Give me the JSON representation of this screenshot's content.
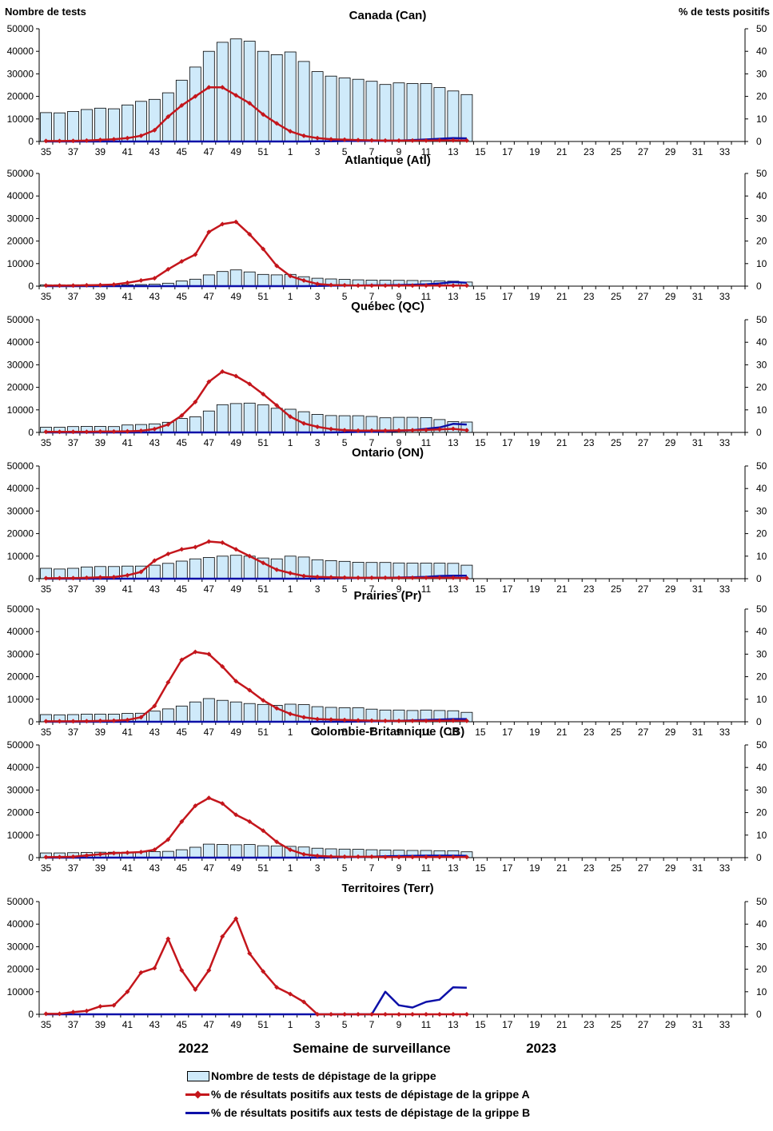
{
  "colors": {
    "bar_fill": "#cfeafa",
    "bar_stroke": "#000000",
    "flu_a": "#c4161c",
    "flu_b": "#0d10a8"
  },
  "axis_titles": {
    "left": "Nombre de tests",
    "right": "% de tests positifs",
    "x": "Semaine de surveillance",
    "year_left": "2022",
    "year_right": "2023"
  },
  "legend": {
    "bars": "Nombre de tests de dépistage de la grippe",
    "flu_a": "% de résultats positifs aux tests de dépistage de la grippe A",
    "flu_b": "% de résultats positifs aux tests de dépistage de la grippe B"
  },
  "chart_data": {
    "type": "bar",
    "weeks": [
      35,
      36,
      37,
      38,
      39,
      40,
      41,
      42,
      43,
      44,
      45,
      46,
      47,
      48,
      49,
      50,
      51,
      52,
      1,
      2,
      3,
      4,
      5,
      6,
      7,
      8,
      9,
      10,
      11,
      12,
      13,
      14,
      15,
      16,
      17,
      18,
      19,
      20,
      21,
      22,
      23,
      24,
      25,
      26,
      27,
      28,
      29,
      30,
      31,
      32,
      33,
      34
    ],
    "x_tick_labels": [
      "35",
      "37",
      "39",
      "41",
      "43",
      "45",
      "47",
      "49",
      "51",
      "1",
      "3",
      "5",
      "7",
      "9",
      "11",
      "13",
      "15",
      "17",
      "19",
      "21",
      "23",
      "25",
      "27",
      "29",
      "31",
      "33"
    ],
    "y_left_ticks": [
      "0",
      "10000",
      "20000",
      "30000",
      "40000",
      "50000"
    ],
    "y_right_ticks": [
      "0",
      "10",
      "20",
      "30",
      "40",
      "50"
    ],
    "ylim_left": [
      0,
      50000
    ],
    "ylim_right": [
      0,
      50
    ],
    "panels": [
      {
        "title": "Canada (Can)",
        "tests": [
          12800,
          12700,
          13300,
          14200,
          14800,
          14500,
          16200,
          17800,
          18700,
          21600,
          27200,
          33000,
          40000,
          44000,
          45500,
          44500,
          40000,
          38500,
          39700,
          35500,
          31000,
          29000,
          28200,
          27600,
          26700,
          25300,
          26000,
          25700,
          25700,
          23900,
          22400,
          20800
        ],
        "flu_a": [
          0.2,
          0.2,
          0.3,
          0.4,
          0.7,
          1.0,
          1.5,
          2.5,
          5.0,
          11.0,
          16.0,
          20.0,
          24.0,
          24.0,
          20.5,
          17.0,
          12.0,
          8.0,
          4.5,
          2.5,
          1.5,
          1.0,
          0.8,
          0.6,
          0.5,
          0.4,
          0.4,
          0.4,
          0.4,
          0.5,
          0.5,
          0.4
        ],
        "flu_b": [
          0,
          0,
          0,
          0,
          0,
          0,
          0,
          0,
          0,
          0,
          0,
          0,
          0,
          0,
          0,
          0,
          0,
          0,
          0,
          0,
          0.1,
          0.1,
          0.2,
          0.2,
          0.3,
          0.3,
          0.4,
          0.6,
          0.9,
          1.2,
          1.5,
          1.4
        ]
      },
      {
        "title": "Atlantique (Atl)",
        "tests": [
          600,
          600,
          600,
          600,
          500,
          600,
          600,
          700,
          900,
          1300,
          2300,
          3100,
          5000,
          6500,
          7200,
          6300,
          5200,
          5000,
          5200,
          4200,
          3500,
          3200,
          3000,
          2800,
          2700,
          2700,
          2600,
          2500,
          2400,
          2300,
          2200,
          1800
        ],
        "flu_a": [
          0.3,
          0.3,
          0.3,
          0.4,
          0.5,
          0.7,
          1.5,
          2.5,
          3.5,
          7.5,
          11.0,
          14.0,
          24.0,
          27.5,
          28.5,
          23.0,
          16.5,
          9.0,
          4.5,
          2.5,
          1.0,
          0.5,
          0.4,
          0.3,
          0.3,
          0.3,
          0.3,
          0.3,
          0.3,
          0.3,
          0.3,
          0.3
        ],
        "flu_b": [
          0,
          0,
          0,
          0,
          0,
          0,
          0,
          0,
          0,
          0,
          0,
          0,
          0,
          0,
          0,
          0,
          0,
          0,
          0,
          0,
          0.1,
          0.2,
          0.3,
          0.3,
          0.4,
          0.4,
          0.5,
          0.6,
          0.8,
          1.2,
          1.8,
          1.5
        ]
      },
      {
        "title": "Québec (QC)",
        "tests": [
          2300,
          2300,
          2600,
          2700,
          2700,
          2600,
          3300,
          3500,
          3800,
          4500,
          6200,
          6900,
          9500,
          12300,
          12800,
          13000,
          12200,
          10700,
          10300,
          9200,
          8000,
          7500,
          7400,
          7400,
          7100,
          6500,
          6700,
          6700,
          6600,
          5700,
          4800,
          4600
        ],
        "flu_a": [
          0.3,
          0.3,
          0.3,
          0.3,
          0.4,
          0.4,
          0.5,
          0.7,
          1.5,
          3.5,
          7.5,
          13.5,
          22.5,
          27.0,
          25.0,
          21.5,
          17.0,
          12.0,
          7.0,
          4.0,
          2.5,
          1.5,
          1.0,
          0.8,
          0.8,
          0.8,
          0.9,
          1.0,
          1.1,
          1.3,
          1.6,
          1.0
        ],
        "flu_b": [
          0,
          0,
          0,
          0,
          0,
          0,
          0,
          0,
          0,
          0,
          0,
          0,
          0,
          0,
          0,
          0,
          0,
          0,
          0,
          0,
          0,
          0,
          0.1,
          0.2,
          0.3,
          0.4,
          0.7,
          1.0,
          1.6,
          2.2,
          3.8,
          3.5
        ]
      },
      {
        "title": "Ontario (ON)",
        "tests": [
          4600,
          4300,
          4600,
          5200,
          5400,
          5400,
          5600,
          5600,
          6000,
          6800,
          7800,
          8800,
          9400,
          10000,
          10400,
          10000,
          9200,
          8800,
          10000,
          9600,
          8400,
          8000,
          7700,
          7300,
          7200,
          7200,
          7000,
          6900,
          6900,
          6900,
          6800,
          6000
        ],
        "flu_a": [
          0.2,
          0.2,
          0.3,
          0.4,
          0.6,
          0.7,
          1.5,
          3.0,
          8.0,
          11.0,
          13.0,
          14.0,
          16.5,
          16.0,
          13.0,
          10.0,
          7.0,
          4.0,
          2.5,
          1.2,
          0.8,
          0.6,
          0.5,
          0.4,
          0.4,
          0.4,
          0.4,
          0.4,
          0.4,
          0.4,
          0.4,
          0.3
        ],
        "flu_b": [
          0,
          0,
          0,
          0,
          0,
          0,
          0,
          0,
          0,
          0,
          0,
          0,
          0,
          0,
          0,
          0,
          0,
          0,
          0,
          0,
          0,
          0.1,
          0.2,
          0.3,
          0.4,
          0.4,
          0.5,
          0.6,
          0.8,
          1.2,
          1.3,
          1.3
        ]
      },
      {
        "title": "Prairies (Pr)",
        "tests": [
          3200,
          3100,
          3200,
          3400,
          3400,
          3400,
          3700,
          3800,
          4700,
          5700,
          7000,
          8800,
          10300,
          9500,
          8800,
          8100,
          7700,
          7300,
          7800,
          7600,
          6700,
          6400,
          6200,
          6200,
          5600,
          5200,
          5200,
          5000,
          5200,
          5000,
          4900,
          4200
        ],
        "flu_a": [
          0.2,
          0.2,
          0.2,
          0.3,
          0.4,
          0.5,
          0.8,
          2.0,
          7.0,
          17.5,
          27.5,
          31.0,
          30.0,
          24.5,
          18.0,
          14.0,
          9.5,
          6.0,
          3.5,
          2.0,
          1.2,
          1.0,
          0.8,
          0.6,
          0.5,
          0.4,
          0.4,
          0.4,
          0.4,
          0.5,
          0.5,
          0.4
        ],
        "flu_b": [
          0,
          0,
          0,
          0,
          0,
          0,
          0,
          0,
          0,
          0,
          0,
          0,
          0,
          0,
          0,
          0,
          0,
          0,
          0,
          0,
          0,
          0,
          0,
          0.1,
          0.2,
          0.3,
          0.4,
          0.6,
          0.8,
          1.0,
          1.2,
          1.2
        ]
      },
      {
        "title": "Colombie-Britannique (CB)",
        "tests": [
          2100,
          2100,
          2200,
          2300,
          2400,
          2400,
          2400,
          2500,
          2700,
          2800,
          3500,
          4600,
          6000,
          5800,
          5700,
          5800,
          5300,
          5200,
          5000,
          4700,
          4200,
          3900,
          3800,
          3700,
          3500,
          3400,
          3300,
          3200,
          3200,
          3100,
          3100,
          2600
        ],
        "flu_a": [
          0.2,
          0.3,
          0.4,
          1.0,
          1.5,
          2.0,
          2.2,
          2.5,
          3.5,
          8.0,
          16.0,
          23.0,
          26.5,
          24.0,
          19.0,
          16.0,
          12.0,
          7.0,
          3.5,
          1.5,
          0.8,
          0.5,
          0.4,
          0.4,
          0.4,
          0.3,
          0.3,
          0.3,
          0.3,
          0.3,
          0.3,
          0.3
        ],
        "flu_b": [
          0,
          0,
          0,
          0,
          0,
          0,
          0,
          0,
          0,
          0,
          0,
          0,
          0,
          0,
          0,
          0,
          0,
          0,
          0,
          0,
          0,
          0.1,
          0.2,
          0.3,
          0.4,
          0.6,
          0.7,
          0.8,
          0.9,
          0.9,
          0.9,
          0.8
        ]
      },
      {
        "title": "Territoires (Terr)",
        "tests": [
          0,
          0,
          0,
          0,
          0,
          0,
          0,
          0,
          0,
          0,
          0,
          0,
          0,
          0,
          0,
          0,
          0,
          0,
          0,
          0,
          0,
          0,
          0,
          0,
          0,
          0,
          0,
          0,
          0,
          0,
          0,
          0
        ],
        "flu_a": [
          0.2,
          0.2,
          1.0,
          1.5,
          3.5,
          4.0,
          10.0,
          18.5,
          20.5,
          33.5,
          19.5,
          11.0,
          19.5,
          34.5,
          42.5,
          27.0,
          19.0,
          12.0,
          9.0,
          5.5,
          0,
          0,
          0,
          0,
          0,
          0,
          0,
          0,
          0,
          0,
          0,
          0
        ],
        "flu_b": [
          0,
          0,
          0,
          0,
          0,
          0,
          0,
          0,
          0,
          0,
          0,
          0,
          0,
          0,
          0,
          0,
          0,
          0,
          0,
          0,
          0,
          0,
          0,
          0,
          0,
          10.0,
          4.0,
          3.0,
          5.5,
          6.5,
          12.0,
          11.8
        ]
      }
    ]
  }
}
